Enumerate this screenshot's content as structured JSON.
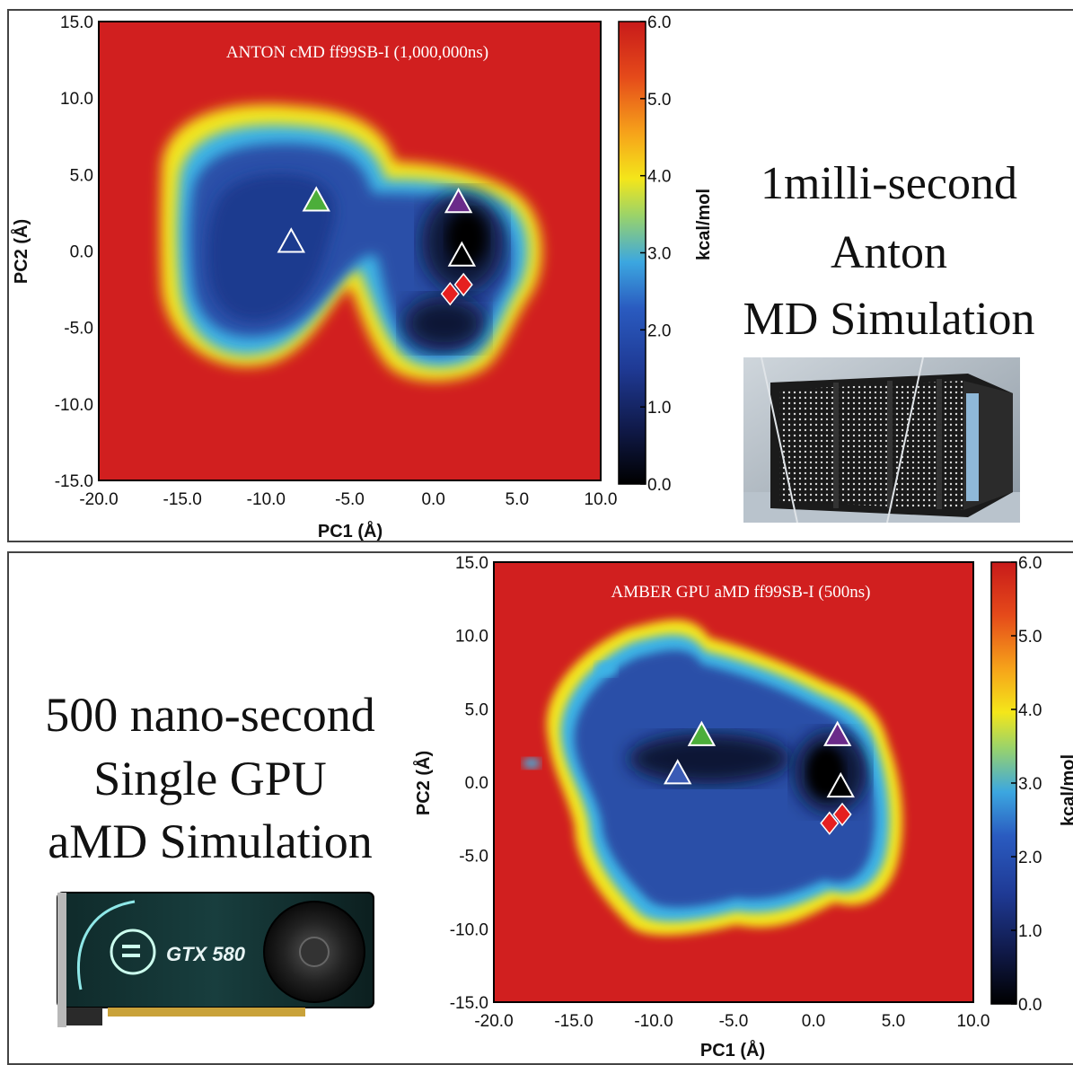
{
  "top_panel": {
    "caption_lines": [
      "1milli-second",
      "Anton",
      "MD Simulation"
    ],
    "image_label": "anton-supercomputer-photo"
  },
  "bottom_panel": {
    "caption_lines": [
      "500 nano-second",
      "Single GPU",
      "aMD Simulation"
    ],
    "image_label": "gpu-card-photo",
    "card_text": "GTX 580"
  },
  "colors": {
    "background_red": "#d11f1f",
    "yellow": "#f4e61a",
    "cyan": "#3cb4e6",
    "blue": "#2a4fa8",
    "dark_navy": "#0c1236",
    "green_marker": "#4cae3a",
    "purple_marker": "#6a2b8a",
    "black_marker": "#000000",
    "red_marker": "#e52020",
    "blue_marker": "#3a5bb5"
  },
  "chart_data": [
    {
      "type": "heatmap",
      "title": "ANTON cMD ff99SB-I (1,000,000ns)",
      "xlabel": "PC1 (Å)",
      "ylabel": "PC2 (Å)",
      "colorbar_label": "kcal/mol",
      "xlim": [
        -20.0,
        10.0
      ],
      "ylim": [
        -15.0,
        15.0
      ],
      "xticks": [
        "-20.0",
        "-15.0",
        "-10.0",
        "-5.0",
        "0.0",
        "5.0",
        "10.0"
      ],
      "yticks": [
        "15.0",
        "10.0",
        "5.0",
        "0.0",
        "-5.0",
        "-10.0",
        "-15.0"
      ],
      "colorbar_range": [
        0.0,
        6.0
      ],
      "colorbar_ticks": [
        "6.0",
        "5.0",
        "4.0",
        "3.0",
        "2.0",
        "1.0",
        "0.0"
      ],
      "markers": [
        {
          "shape": "triangle",
          "color": "green",
          "x": -7.0,
          "y": 3.3
        },
        {
          "shape": "triangle",
          "color": "white",
          "x": -8.5,
          "y": 0.6
        },
        {
          "shape": "triangle",
          "color": "purple",
          "x": 1.5,
          "y": 3.2
        },
        {
          "shape": "triangle",
          "color": "black",
          "x": 1.7,
          "y": -0.3
        },
        {
          "shape": "diamond",
          "color": "red",
          "x": 1.8,
          "y": -2.2
        },
        {
          "shape": "diamond",
          "color": "red",
          "x": 1.0,
          "y": -2.8
        }
      ],
      "basins": [
        {
          "cx": -7.5,
          "cy": -1.0,
          "rx": 5.5,
          "ry": 5.0,
          "level": 2.0
        },
        {
          "cx": 1.0,
          "cy": -1.0,
          "rx": 4.0,
          "ry": 5.5,
          "level": 0.2
        }
      ]
    },
    {
      "type": "heatmap",
      "title": "AMBER GPU aMD ff99SB-I (500ns)",
      "xlabel": "PC1 (Å)",
      "ylabel": "PC2 (Å)",
      "colorbar_label": "kcal/mol",
      "xlim": [
        -20.0,
        10.0
      ],
      "ylim": [
        -15.0,
        15.0
      ],
      "xticks": [
        "-20.0",
        "-15.0",
        "-10.0",
        "-5.0",
        "0.0",
        "5.0",
        "10.0"
      ],
      "yticks": [
        "15.0",
        "10.0",
        "5.0",
        "0.0",
        "-5.0",
        "-10.0",
        "-15.0"
      ],
      "colorbar_range": [
        0.0,
        6.0
      ],
      "colorbar_ticks": [
        "6.0",
        "5.0",
        "4.0",
        "3.0",
        "2.0",
        "1.0",
        "0.0"
      ],
      "markers": [
        {
          "shape": "triangle",
          "color": "green",
          "x": -7.0,
          "y": 3.2
        },
        {
          "shape": "triangle",
          "color": "blue",
          "x": -8.5,
          "y": 0.6
        },
        {
          "shape": "triangle",
          "color": "purple",
          "x": 1.5,
          "y": 3.2
        },
        {
          "shape": "triangle",
          "color": "black",
          "x": 1.7,
          "y": -0.3
        },
        {
          "shape": "diamond",
          "color": "red",
          "x": 1.8,
          "y": -2.2
        },
        {
          "shape": "diamond",
          "color": "red",
          "x": 1.0,
          "y": -2.8
        }
      ]
    }
  ]
}
